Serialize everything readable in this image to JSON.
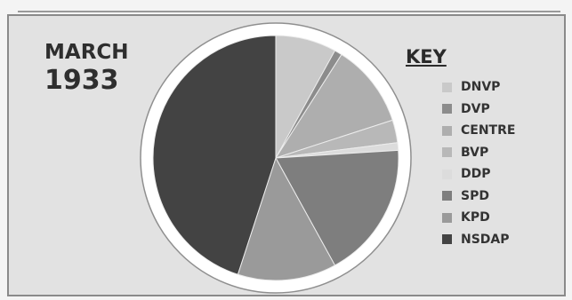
{
  "chart_data": {
    "type": "pie",
    "title_line1": "MARCH",
    "title_line2": "1933",
    "legend_title": "KEY",
    "slices": [
      {
        "name": "DNVP",
        "value": 8,
        "color": "#c9c9c9"
      },
      {
        "name": "DVP",
        "value": 1,
        "color": "#8c8c8c"
      },
      {
        "name": "CENTRE",
        "value": 11,
        "color": "#aeaeae"
      },
      {
        "name": "BVP",
        "value": 3,
        "color": "#b8b8b8"
      },
      {
        "name": "DDP",
        "value": 1,
        "color": "#dcdcdc"
      },
      {
        "name": "SPD",
        "value": 18,
        "color": "#7e7e7e"
      },
      {
        "name": "KPD",
        "value": 13,
        "color": "#9a9a9a"
      },
      {
        "name": "NSDAP",
        "value": 45,
        "color": "#434343"
      }
    ]
  }
}
